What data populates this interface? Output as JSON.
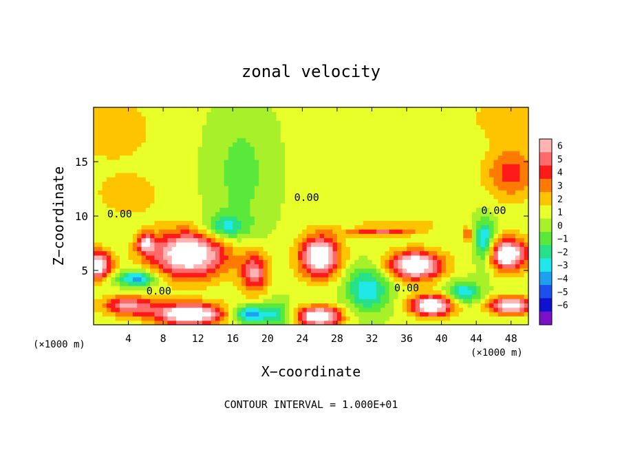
{
  "chart_data": {
    "type": "heatmap",
    "title": "zonal velocity",
    "xlabel": "X−coordinate",
    "ylabel": "Z−coordinate",
    "x_unit_left": "(×1000 m)",
    "x_unit_right": "(×1000 m)",
    "footer": "CONTOUR INTERVAL = 1.000E+01",
    "xlim": [
      0,
      50
    ],
    "ylim": [
      0,
      20
    ],
    "x_ticks": [
      4,
      8,
      12,
      16,
      20,
      24,
      28,
      32,
      36,
      40,
      44,
      48
    ],
    "y_ticks": [
      5,
      10,
      15
    ],
    "contour_labels": [
      {
        "text": "0.00",
        "x": 3.0,
        "z": 10.2
      },
      {
        "text": "0.00",
        "x": 24.5,
        "z": 11.7
      },
      {
        "text": "0.00",
        "x": 46.0,
        "z": 10.5
      },
      {
        "text": "0.00",
        "x": 7.5,
        "z": 3.1
      },
      {
        "text": "0.00",
        "x": 36.0,
        "z": 3.4
      }
    ],
    "colorbar": {
      "labels": [
        "6",
        "5",
        "4",
        "3",
        "2",
        "1",
        "0",
        "−1",
        "−2",
        "−3",
        "−4",
        "−5",
        "−6"
      ],
      "colors": [
        "#ffb3b3",
        "#ff6a6a",
        "#ff1a1a",
        "#ff7a00",
        "#ffc400",
        "#e8ff2a",
        "#a8f02a",
        "#5ae83a",
        "#27e08a",
        "#20e8e8",
        "#1ea0f0",
        "#1c50ee",
        "#1010d0",
        "#7a10c8"
      ]
    },
    "field": {
      "background": 0.2,
      "blobs": [
        {
          "x": 2,
          "z": 18,
          "sx": 5,
          "sz": 3,
          "a": 1.6
        },
        {
          "x": 4,
          "z": 12,
          "sx": 4,
          "sz": 2,
          "a": 1.5
        },
        {
          "x": 48,
          "z": 14,
          "sx": 3,
          "sz": 2.5,
          "a": 3.2
        },
        {
          "x": 48,
          "z": 19,
          "sx": 5,
          "sz": 2,
          "a": 1.5
        },
        {
          "x": 17,
          "z": 14,
          "sx": 3.5,
          "sz": 6,
          "a": -1.6
        },
        {
          "x": 15,
          "z": 9,
          "sx": 2.5,
          "sz": 1.2,
          "a": -3.5
        },
        {
          "x": 11,
          "z": 6.5,
          "sx": 4.5,
          "sz": 2.2,
          "a": 7.5
        },
        {
          "x": 0.5,
          "z": 5.5,
          "sx": 1.6,
          "sz": 1.3,
          "a": 7
        },
        {
          "x": 6,
          "z": 7.5,
          "sx": 1.0,
          "sz": 0.9,
          "a": 5
        },
        {
          "x": 5,
          "z": 4.3,
          "sx": 2.5,
          "sz": 0.7,
          "a": -5
        },
        {
          "x": 18.5,
          "z": 4.8,
          "sx": 1.6,
          "sz": 1.8,
          "a": 5
        },
        {
          "x": 4,
          "z": 1.8,
          "sx": 3,
          "sz": 0.9,
          "a": 5
        },
        {
          "x": 11,
          "z": 1.0,
          "sx": 4,
          "sz": 1.0,
          "a": 8
        },
        {
          "x": 18,
          "z": 1.0,
          "sx": 2,
          "sz": 0.8,
          "a": -5
        },
        {
          "x": 26,
          "z": 6.3,
          "sx": 2.3,
          "sz": 1.9,
          "a": 7.5
        },
        {
          "x": 26,
          "z": 0.8,
          "sx": 2.4,
          "sz": 0.9,
          "a": 8
        },
        {
          "x": 21,
          "z": 1.0,
          "sx": 1.5,
          "sz": 1.2,
          "a": -3
        },
        {
          "x": 31.5,
          "z": 3.3,
          "sx": 2.5,
          "sz": 2,
          "a": -4
        },
        {
          "x": 37,
          "z": 5.5,
          "sx": 3,
          "sz": 1.3,
          "a": 8
        },
        {
          "x": 39,
          "z": 1.8,
          "sx": 2.5,
          "sz": 1.0,
          "a": 7.5
        },
        {
          "x": 42.5,
          "z": 3.0,
          "sx": 2,
          "sz": 1.0,
          "a": -4
        },
        {
          "x": 47.5,
          "z": 6.5,
          "sx": 2.5,
          "sz": 1.5,
          "a": 7.5
        },
        {
          "x": 45,
          "z": 7.5,
          "sx": 1.2,
          "sz": 2.2,
          "a": -5
        },
        {
          "x": 48,
          "z": 1.8,
          "sx": 2.5,
          "sz": 0.8,
          "a": 7
        },
        {
          "x": 33,
          "z": 8.5,
          "sx": 4,
          "sz": 0.3,
          "a": 4
        },
        {
          "x": 35,
          "z": 9.2,
          "sx": 6,
          "sz": 0.5,
          "a": 1.5
        },
        {
          "x": 43,
          "z": 8.3,
          "sx": 0.6,
          "sz": 0.6,
          "a": 3.5
        }
      ]
    }
  }
}
